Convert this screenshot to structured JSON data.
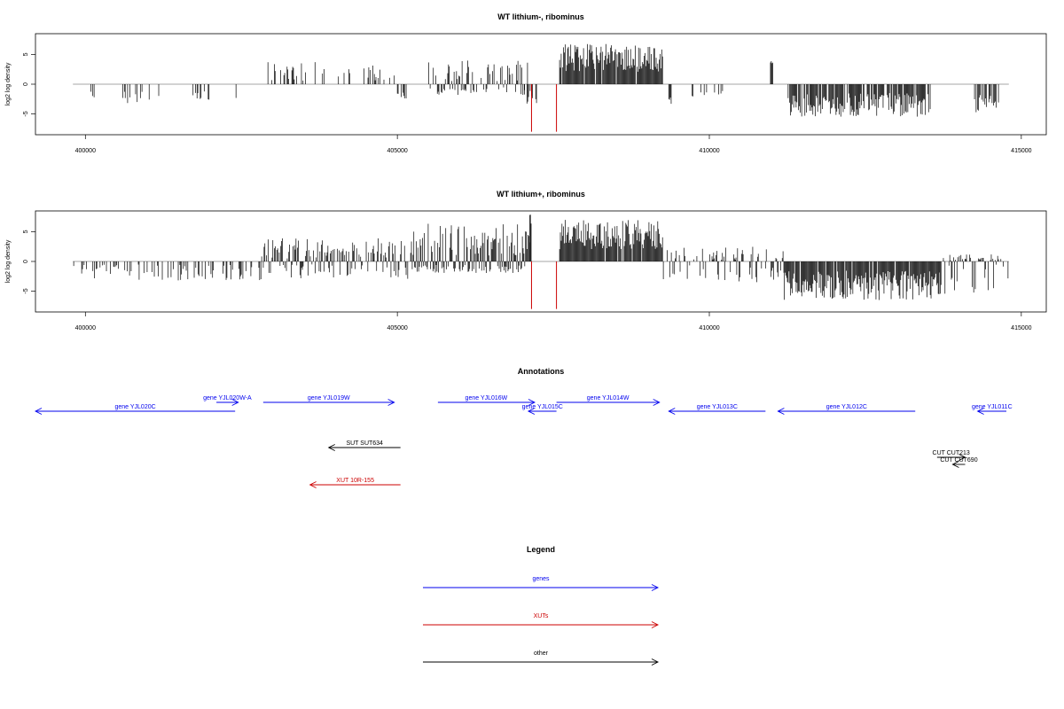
{
  "chart_data": [
    {
      "type": "bar",
      "title": "WT lithium-, ribominus",
      "ylabel": "log2 log density",
      "xlabel": "",
      "xlim": [
        399200,
        415400
      ],
      "ylim": [
        -8.5,
        8.5
      ],
      "x_ticks": [
        400000,
        405000,
        410000,
        415000
      ],
      "x_tick_labels": [
        "400000",
        "405000",
        "410000",
        "415000"
      ],
      "y_ticks": [
        5,
        0,
        -5
      ],
      "y_tick_labels": [
        "5",
        "0",
        "-5"
      ],
      "baseline": {
        "from": 399800,
        "to": 414800,
        "color": "#888888"
      },
      "highlight_color": "#cc0000",
      "highlights": [
        {
          "x": 407150,
          "y": -8
        },
        {
          "x": 407550,
          "y": -8
        }
      ],
      "segments": [
        {
          "from": 400050,
          "to": 400150,
          "density": 0.5,
          "pos_min": 0,
          "pos_max": 0,
          "neg_min": 1.2,
          "neg_max": 2.2,
          "seed": 11
        },
        {
          "from": 400600,
          "to": 401200,
          "density": 0.25,
          "pos_min": 0,
          "pos_max": 0,
          "neg_min": 1.0,
          "neg_max": 3.5,
          "seed": 12
        },
        {
          "from": 401700,
          "to": 402000,
          "density": 0.35,
          "pos_min": 0,
          "pos_max": 0,
          "neg_min": 1.2,
          "neg_max": 2.8,
          "seed": 13
        },
        {
          "from": 402350,
          "to": 402420,
          "density": 0.5,
          "pos_min": 0,
          "pos_max": 0,
          "neg_min": 2.0,
          "neg_max": 2.6,
          "seed": 14
        },
        {
          "from": 402900,
          "to": 403700,
          "density": 0.3,
          "pos_min": 0.5,
          "pos_max": 4.0,
          "neg_min": 0,
          "neg_max": 0,
          "seed": 15
        },
        {
          "from": 403800,
          "to": 405000,
          "density": 0.2,
          "pos_min": 0.5,
          "pos_max": 3.2,
          "neg_min": 0,
          "neg_max": 0,
          "seed": 16
        },
        {
          "from": 405000,
          "to": 405150,
          "density": 0.4,
          "pos_min": 0,
          "pos_max": 0,
          "neg_min": 1.0,
          "neg_max": 2.5,
          "seed": 17
        },
        {
          "from": 405500,
          "to": 407100,
          "density": 0.5,
          "pos_min": 0.5,
          "pos_max": 4.0,
          "neg_min": 0.5,
          "neg_max": 1.8,
          "seed": 18
        },
        {
          "from": 407000,
          "to": 407250,
          "density": 0.4,
          "pos_min": 0,
          "pos_max": 0,
          "neg_min": 1.0,
          "neg_max": 3.5,
          "seed": 19
        },
        {
          "from": 407600,
          "to": 409250,
          "density": 0.95,
          "pos_min": 2.0,
          "pos_max": 6.8,
          "neg_min": 0,
          "neg_max": 0,
          "seed": 20
        },
        {
          "from": 409350,
          "to": 409400,
          "density": 0.6,
          "pos_min": 0,
          "pos_max": 0,
          "neg_min": 2.0,
          "neg_max": 3.5,
          "seed": 21
        },
        {
          "from": 409700,
          "to": 410300,
          "density": 0.2,
          "pos_min": 0,
          "pos_max": 0,
          "neg_min": 1.0,
          "neg_max": 3.0,
          "seed": 22
        },
        {
          "from": 410980,
          "to": 411020,
          "density": 1.0,
          "pos_min": 3.5,
          "pos_max": 4.0,
          "neg_min": 0,
          "neg_max": 0,
          "seed": 23
        },
        {
          "from": 411250,
          "to": 413550,
          "density": 0.85,
          "pos_min": 0,
          "pos_max": 0,
          "neg_min": 1.5,
          "neg_max": 5.5,
          "seed": 24
        },
        {
          "from": 414250,
          "to": 414650,
          "density": 0.6,
          "pos_min": 0,
          "pos_max": 0,
          "neg_min": 1.5,
          "neg_max": 5.0,
          "seed": 25
        }
      ]
    },
    {
      "type": "bar",
      "title": "WT lithium+, ribominus",
      "ylabel": "log2 log density",
      "xlabel": "",
      "xlim": [
        399200,
        415400
      ],
      "ylim": [
        -8.5,
        8.5
      ],
      "x_ticks": [
        400000,
        405000,
        410000,
        415000
      ],
      "x_tick_labels": [
        "400000",
        "405000",
        "410000",
        "415000"
      ],
      "y_ticks": [
        5,
        0,
        -5
      ],
      "y_tick_labels": [
        "5",
        "0",
        "-5"
      ],
      "baseline": {
        "from": 399800,
        "to": 414800,
        "color": "#888888"
      },
      "highlight_color": "#cc0000",
      "highlights": [
        {
          "x": 407150,
          "y": -8
        },
        {
          "x": 407550,
          "y": -8
        }
      ],
      "segments": [
        {
          "from": 399800,
          "to": 402800,
          "density": 0.3,
          "pos_min": 0,
          "pos_max": 0,
          "neg_min": 0.5,
          "neg_max": 3.2,
          "seed": 31
        },
        {
          "from": 402800,
          "to": 405200,
          "density": 0.6,
          "pos_min": 0.5,
          "pos_max": 4.0,
          "neg_min": 0.5,
          "neg_max": 3.0,
          "seed": 32
        },
        {
          "from": 405200,
          "to": 407150,
          "density": 0.9,
          "pos_min": 1.0,
          "pos_max": 6.5,
          "neg_min": 0.5,
          "neg_max": 2.0,
          "seed": 33
        },
        {
          "from": 407120,
          "to": 407140,
          "density": 1.0,
          "pos_min": 7.8,
          "pos_max": 8.0,
          "neg_min": 0,
          "neg_max": 0,
          "seed": 34
        },
        {
          "from": 407600,
          "to": 409250,
          "density": 0.95,
          "pos_min": 2.0,
          "pos_max": 7.0,
          "neg_min": 0,
          "neg_max": 0,
          "seed": 35
        },
        {
          "from": 409250,
          "to": 411200,
          "density": 0.5,
          "pos_min": 0.3,
          "pos_max": 2.5,
          "neg_min": 0.5,
          "neg_max": 3.5,
          "seed": 36
        },
        {
          "from": 411200,
          "to": 413700,
          "density": 0.95,
          "pos_min": 0,
          "pos_max": 0,
          "neg_min": 1.5,
          "neg_max": 6.5,
          "seed": 37
        },
        {
          "from": 413700,
          "to": 414800,
          "density": 0.5,
          "pos_min": 0,
          "pos_max": 1.2,
          "neg_min": 0.5,
          "neg_max": 5.5,
          "seed": 38
        }
      ]
    }
  ],
  "annotations": {
    "title": "Annotations",
    "features": [
      {
        "label": "gene YJL020W-A",
        "from": 402100,
        "to": 402450,
        "dir": "right",
        "color": "#0000ee",
        "row": 0
      },
      {
        "label": "gene YJL020C",
        "from": 399200,
        "to": 402400,
        "dir": "left",
        "color": "#0000ee",
        "row": 1
      },
      {
        "label": "gene YJL019W",
        "from": 402850,
        "to": 404950,
        "dir": "right",
        "color": "#0000ee",
        "row": 0
      },
      {
        "label": "gene YJL016W",
        "from": 405650,
        "to": 407200,
        "dir": "right",
        "color": "#0000ee",
        "row": 0
      },
      {
        "label": "gene YJL015C",
        "from": 407100,
        "to": 407550,
        "dir": "left",
        "color": "#0000ee",
        "row": 1
      },
      {
        "label": "gene YJL014W",
        "from": 407550,
        "to": 409200,
        "dir": "right",
        "color": "#0000ee",
        "row": 0
      },
      {
        "label": "gene YJL013C",
        "from": 409350,
        "to": 410900,
        "dir": "left",
        "color": "#0000ee",
        "row": 1
      },
      {
        "label": "gene YJL012C",
        "from": 411100,
        "to": 413300,
        "dir": "left",
        "color": "#0000ee",
        "row": 1
      },
      {
        "label": "gene YJL011C",
        "from": 414300,
        "to": 414800,
        "dir": "left",
        "color": "#0000ee",
        "row": 1
      },
      {
        "label": "SUT SUT634",
        "from": 403900,
        "to": 405050,
        "dir": "left",
        "color": "#000000",
        "row": 2
      },
      {
        "label": "CUT CUT213",
        "from": 413650,
        "to": 414100,
        "dir": "right",
        "color": "#000000",
        "row": 3
      },
      {
        "label": "CUT CUT690",
        "from": 413900,
        "to": 414100,
        "dir": "left",
        "color": "#000000",
        "row": 4
      },
      {
        "label": "XUT 10R-155",
        "from": 403600,
        "to": 405050,
        "dir": "left",
        "color": "#cc0000",
        "row": 5
      }
    ]
  },
  "legend": {
    "title": "Legend",
    "items": [
      {
        "label": "genes",
        "color": "#0000ee"
      },
      {
        "label": "XUTs",
        "color": "#cc0000"
      },
      {
        "label": "other",
        "color": "#000000"
      }
    ]
  }
}
